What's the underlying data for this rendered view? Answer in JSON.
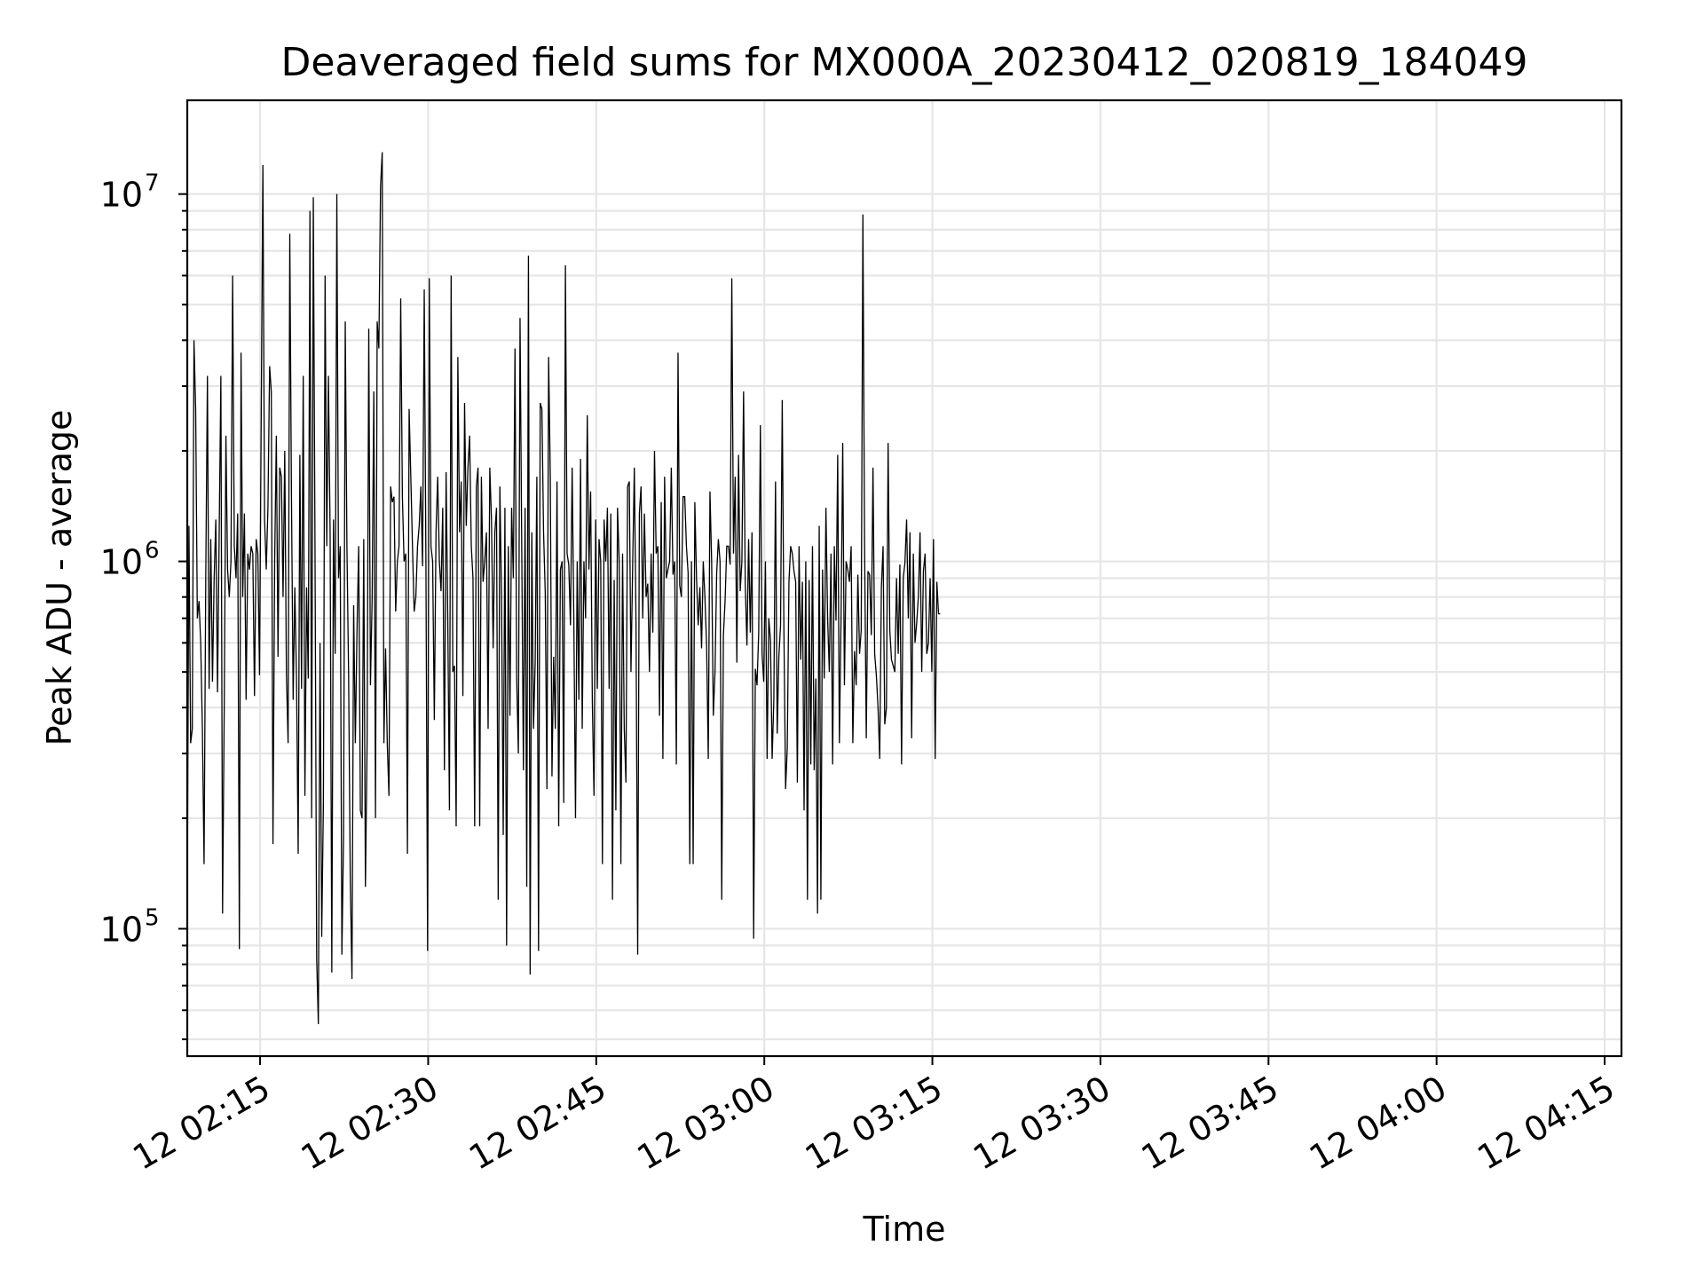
{
  "chart_data": {
    "type": "line",
    "title": "Deaveraged field sums for MX000A_20230412_020819_184049",
    "xlabel": "Time",
    "ylabel": "Peak ADU - average",
    "y_scale": "log",
    "ylim": [
      45000,
      18000000
    ],
    "xlim": [
      "2023-04-12 02:08:30",
      "2023-04-12 04:16:30"
    ],
    "grid": true,
    "x_tick_labels": [
      {
        "time": "2023-04-12 02:15",
        "label": "12 02:15"
      },
      {
        "time": "2023-04-12 02:30",
        "label": "12 02:30"
      },
      {
        "time": "2023-04-12 02:45",
        "label": "12 02:45"
      },
      {
        "time": "2023-04-12 03:00",
        "label": "12 03:00"
      },
      {
        "time": "2023-04-12 03:15",
        "label": "12 03:15"
      },
      {
        "time": "2023-04-12 03:30",
        "label": "12 03:30"
      },
      {
        "time": "2023-04-12 03:45",
        "label": "12 03:45"
      },
      {
        "time": "2023-04-12 04:00",
        "label": "12 04:00"
      },
      {
        "time": "2023-04-12 04:15",
        "label": "12 04:15"
      }
    ],
    "y_tick_labels": [
      {
        "value": 100000,
        "base": "10",
        "exp": "5"
      },
      {
        "value": 1000000,
        "base": "10",
        "exp": "6"
      },
      {
        "value": 10000000,
        "base": "10",
        "exp": "7"
      }
    ],
    "series": [
      {
        "color": "#000000",
        "x_start": "2023-04-12 02:08:30",
        "x_step_seconds": 9,
        "values": [
          120000,
          1250000,
          320000,
          350000,
          4000000,
          2600000,
          700000,
          780000,
          600000,
          350000,
          150000,
          900000,
          3200000,
          450000,
          1150000,
          470000,
          900000,
          1300000,
          440000,
          1200000,
          3200000,
          110000,
          400000,
          2200000,
          950000,
          800000,
          1000000,
          6000000,
          1100000,
          900000,
          1350000,
          88000,
          3700000,
          800000,
          1350000,
          420000,
          1050000,
          950000,
          1100000,
          1050000,
          430000,
          1150000,
          1050000,
          490000,
          2500000,
          12000000,
          1300000,
          950000,
          1400000,
          3400000,
          2900000,
          170000,
          1000000,
          2200000,
          550000,
          1800000,
          1700000,
          800000,
          2000000,
          490000,
          320000,
          7800000,
          1500000,
          420000,
          850000,
          480000,
          160000,
          1950000,
          450000,
          3200000,
          230000,
          850000,
          480000,
          9000000,
          200000,
          9800000,
          1100000,
          83000,
          55000,
          600000,
          95000,
          220000,
          6000000,
          1100000,
          3200000,
          1200000,
          76000,
          1300000,
          560000,
          10000000,
          900000,
          1100000,
          85000,
          180000,
          4500000,
          1100000,
          490000,
          135000,
          73000,
          760000,
          320000,
          650000,
          1100000,
          210000,
          200000,
          1150000,
          130000,
          320000,
          4300000,
          460000,
          790000,
          2900000,
          200000,
          4500000,
          3800000,
          10500000,
          13000000,
          320000,
          580000,
          320000,
          230000,
          1600000,
          1450000,
          1500000,
          730000,
          1000000,
          1100000,
          5200000,
          1500000,
          1000000,
          1050000,
          160000,
          2600000,
          1700000,
          1100000,
          730000,
          800000,
          1100000,
          1250000,
          1600000,
          970000,
          5500000,
          1000000,
          87000,
          5900000,
          1100000,
          1000000,
          370000,
          1200000,
          1700000,
          1000000,
          830000,
          1400000,
          270000,
          1750000,
          700000,
          210000,
          6000000,
          500000,
          520000,
          190000,
          3600000,
          1200000,
          1650000,
          430000,
          2700000,
          1250000,
          1800000,
          2200000,
          1100000,
          900000,
          190000,
          1600000,
          1800000,
          190000,
          1700000,
          880000,
          1000000,
          1200000,
          350000,
          1800000,
          1300000,
          580000,
          1200000,
          1400000,
          120000,
          1600000,
          800000,
          180000,
          1400000,
          90000,
          1100000,
          380000,
          1400000,
          900000,
          3800000,
          480000,
          300000,
          4600000,
          1100000,
          270000,
          1400000,
          130000,
          6800000,
          75000,
          1200000,
          350000,
          530000,
          1700000,
          87000,
          2700000,
          2600000,
          1200000,
          820000,
          240000,
          3600000,
          1700000,
          260000,
          550000,
          350000,
          1650000,
          190000,
          950000,
          1000000,
          220000,
          6400000,
          1050000,
          980000,
          670000,
          1800000,
          700000,
          200000,
          1000000,
          420000,
          1900000,
          350000,
          1000000,
          700000,
          2500000,
          950000,
          1550000,
          420000,
          230000,
          1300000,
          450000,
          1150000,
          1000000,
          150000,
          1300000,
          1000000,
          1400000,
          450000,
          1350000,
          120000,
          890000,
          210000,
          1400000,
          1000000,
          150000,
          1050000,
          350000,
          250000,
          1600000,
          1650000,
          500000,
          970000,
          1800000,
          680000,
          85000,
          1350000,
          1600000,
          700000,
          1350000,
          800000,
          870000,
          500000,
          1050000,
          640000,
          2000000,
          1050000,
          1100000,
          380000,
          1450000,
          290000,
          1700000,
          900000,
          950000,
          1000000,
          1800000,
          920000,
          1000000,
          280000,
          3700000,
          860000,
          800000,
          1500000,
          1500000,
          1100000,
          930000,
          150000,
          1000000,
          150000,
          1450000,
          900000,
          670000,
          850000,
          580000,
          1000000,
          800000,
          590000,
          290000,
          1550000,
          1000000,
          380000,
          500000,
          930000,
          1150000,
          1000000,
          120000,
          630000,
          780000,
          1100000,
          1100000,
          980000,
          5900000,
          1050000,
          1700000,
          530000,
          1950000,
          830000,
          1000000,
          2900000,
          870000,
          590000,
          1150000,
          640000,
          1200000,
          94000,
          510000,
          460000,
          640000,
          2350000,
          560000,
          470000,
          1000000,
          290000,
          700000,
          610000,
          290000,
          420000,
          1650000,
          340000,
          550000,
          670000,
          2750000,
          650000,
          240000,
          310000,
          880000,
          1100000,
          1050000,
          940000,
          880000,
          250000,
          1100000,
          540000,
          880000,
          210000,
          1000000,
          120000,
          890000,
          280000,
          1100000,
          270000,
          480000,
          110000,
          1250000,
          120000,
          950000,
          480000,
          1400000,
          700000,
          500000,
          1050000,
          280000,
          1100000,
          690000,
          1950000,
          320000,
          700000,
          2100000,
          460000,
          1000000,
          950000,
          880000,
          1100000,
          320000,
          570000,
          460000,
          920000,
          560000,
          650000,
          8800000,
          1100000,
          330000,
          940000,
          920000,
          630000,
          1800000,
          560000,
          490000,
          400000,
          290000,
          850000,
          1100000,
          360000,
          400000,
          2100000,
          650000,
          540000,
          520000,
          500000,
          900000,
          560000,
          980000,
          280000,
          900000,
          990000,
          1300000,
          700000,
          1200000,
          330000,
          1050000,
          600000,
          680000,
          800000,
          1200000,
          500000,
          940000,
          1050000,
          560000,
          600000,
          900000,
          500000,
          1150000,
          290000,
          880000,
          720000,
          720000
        ]
      }
    ]
  }
}
